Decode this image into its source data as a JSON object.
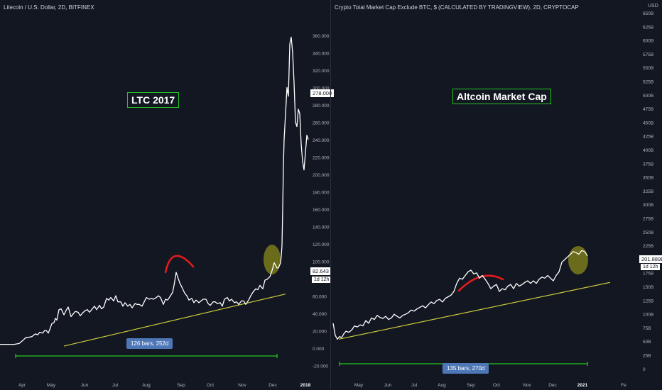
{
  "chart_data": [
    {
      "type": "line",
      "title": "Litecoin / U.S. Dollar, 2D, BITFINEX",
      "annotation": "LTC 2017",
      "measure_label": "126 bars, 252d",
      "current_price": "278.000",
      "last_price_label": "82.643",
      "countdown": "1d 12h",
      "y_ticks": [
        "360.000",
        "340.000",
        "320.000",
        "300.000",
        "280.000",
        "260.000",
        "240.000",
        "220.000",
        "200.000",
        "180.000",
        "160.000",
        "140.000",
        "120.000",
        "100.000",
        "80.000",
        "60.000",
        "40.000",
        "20.000",
        "0.000",
        "-20.000"
      ],
      "x_ticks": [
        "Apr",
        "May",
        "Jun",
        "Jul",
        "Aug",
        "Sep",
        "Oct",
        "Nov",
        "Dec",
        "2018"
      ],
      "ylim": [
        -20,
        360
      ],
      "x": [
        0,
        5,
        12,
        20,
        27,
        30,
        34,
        37,
        40,
        45,
        48,
        50,
        53,
        56,
        60,
        63,
        65,
        68,
        70,
        73,
        76,
        78,
        80,
        83,
        86,
        90,
        93,
        96,
        100,
        103,
        106,
        110,
        113,
        116,
        120,
        123,
        126,
        130,
        133,
        136,
        140,
        143,
        146,
        150,
        153,
        156,
        160,
        163,
        166,
        170,
        173,
        176,
        180,
        183,
        186,
        190,
        193,
        196,
        200,
        203,
        206,
        210,
        213,
        216,
        220,
        223,
        226,
        230,
        233,
        236,
        240,
        243,
        245,
        248,
        250,
        253,
        256,
        260,
        263,
        266,
        270,
        273,
        276,
        280,
        283,
        286,
        290,
        293,
        296,
        300,
        303,
        306,
        310,
        313,
        316,
        320,
        323,
        326,
        330,
        333,
        336,
        340,
        343,
        346,
        350,
        353,
        356,
        360,
        363,
        366,
        370,
        373,
        376,
        380,
        383,
        386,
        390,
        392,
        394,
        395,
        396,
        397,
        398,
        399,
        400,
        402,
        404,
        406,
        408,
        410,
        412,
        414,
        416,
        418,
        420,
        422,
        424,
        426,
        428,
        430,
        432,
        434
      ],
      "y": [
        4,
        4,
        4,
        4,
        5,
        7,
        10,
        12,
        12,
        13,
        15,
        16,
        15,
        18,
        17,
        20,
        20,
        17,
        21,
        28,
        29,
        34,
        32,
        44,
        45,
        38,
        43,
        47,
        36,
        39,
        42,
        41,
        37,
        40,
        43,
        44,
        41,
        45,
        48,
        44,
        49,
        45,
        47,
        57,
        55,
        58,
        54,
        60,
        53,
        53,
        48,
        52,
        48,
        50,
        46,
        51,
        50,
        50,
        48,
        53,
        58,
        56,
        57,
        56,
        58,
        60,
        58,
        50,
        56,
        55,
        60,
        64,
        72,
        87,
        82,
        75,
        70,
        63,
        60,
        55,
        57,
        52,
        55,
        52,
        54,
        56,
        56,
        51,
        49,
        53,
        53,
        51,
        52,
        48,
        56,
        58,
        54,
        56,
        52,
        53,
        50,
        54,
        54,
        50,
        55,
        60,
        64,
        68,
        67,
        72,
        68,
        78,
        79,
        82,
        89,
        98,
        92,
        92,
        96,
        98,
        106,
        118,
        160,
        210,
        240,
        270,
        300,
        290,
        350,
        358,
        340,
        305,
        260,
        255,
        275,
        270,
        235,
        215,
        205,
        225,
        245,
        240
      ],
      "trendline": {
        "x": [
          90,
          402
        ],
        "y": [
          2,
          62
        ]
      },
      "measure_range": {
        "x": [
          22,
          390
        ]
      },
      "colors": {
        "line": "#ffffff",
        "trendline": "#c8c83a",
        "highlight": "#8a8a1a",
        "arc": "#e31b1b",
        "measure": "#21c521"
      }
    },
    {
      "type": "line",
      "title": "Crypto Total Market Cap Exclude BTC, $ (CALCULATED BY TRADINGVIEW), 2D, CRYPTOCAP",
      "annotation": "Altcoin Market Cap",
      "measure_label": "135 bars, 270d",
      "current_price": "201.889B",
      "countdown": "1d 12h",
      "unit": "USD",
      "y_ticks": [
        "650B",
        "625B",
        "600B",
        "575B",
        "550B",
        "525B",
        "500B",
        "475B",
        "450B",
        "425B",
        "400B",
        "375B",
        "350B",
        "325B",
        "300B",
        "275B",
        "250B",
        "225B",
        "200B",
        "175B",
        "150B",
        "125B",
        "100B",
        "75B",
        "50B",
        "25B",
        "0"
      ],
      "x_ticks": [
        "May",
        "Jun",
        "Jul",
        "Aug",
        "Sep",
        "Oct",
        "Nov",
        "Dec",
        "2021",
        "Fe"
      ],
      "ylim": [
        -12,
        660
      ],
      "x": [
        0,
        3,
        6,
        9,
        12,
        15,
        18,
        22,
        26,
        30,
        34,
        38,
        42,
        46,
        50,
        54,
        58,
        62,
        66,
        70,
        74,
        78,
        82,
        86,
        90,
        94,
        98,
        102,
        106,
        110,
        114,
        118,
        122,
        126,
        130,
        134,
        138,
        142,
        146,
        150,
        154,
        158,
        162,
        166,
        170,
        174,
        178,
        182,
        186,
        190,
        194,
        198,
        202,
        206,
        210,
        214,
        218,
        222,
        226,
        230,
        234,
        238,
        242,
        246,
        250,
        254,
        258,
        262,
        266,
        270,
        274,
        278,
        282,
        286,
        290,
        294,
        298,
        302,
        306,
        310,
        314,
        318,
        322,
        326,
        330,
        334,
        338,
        342,
        346,
        350,
        354,
        358
      ],
      "y": [
        75,
        52,
        45,
        50,
        48,
        55,
        60,
        58,
        62,
        70,
        68,
        72,
        70,
        80,
        75,
        85,
        82,
        90,
        86,
        84,
        88,
        82,
        85,
        92,
        88,
        85,
        90,
        92,
        95,
        100,
        98,
        102,
        105,
        108,
        104,
        110,
        115,
        112,
        118,
        120,
        115,
        122,
        125,
        128,
        135,
        150,
        160,
        158,
        165,
        172,
        175,
        168,
        170,
        160,
        165,
        158,
        150,
        140,
        145,
        148,
        135,
        140,
        138,
        145,
        148,
        140,
        150,
        145,
        148,
        152,
        155,
        150,
        155,
        150,
        158,
        162,
        160,
        165,
        160,
        155,
        165,
        172,
        190,
        195,
        200,
        205,
        210,
        208,
        205,
        212,
        210,
        202
      ],
      "trendline": {
        "x": [
          8,
          390
        ],
        "y": [
          45,
          152
        ]
      },
      "measure_range": {
        "x": [
          9,
          358
        ]
      },
      "colors": {
        "line": "#ffffff",
        "trendline": "#c8c83a",
        "highlight": "#8a8a1a",
        "arc": "#e31b1b",
        "measure": "#21c521"
      }
    }
  ]
}
